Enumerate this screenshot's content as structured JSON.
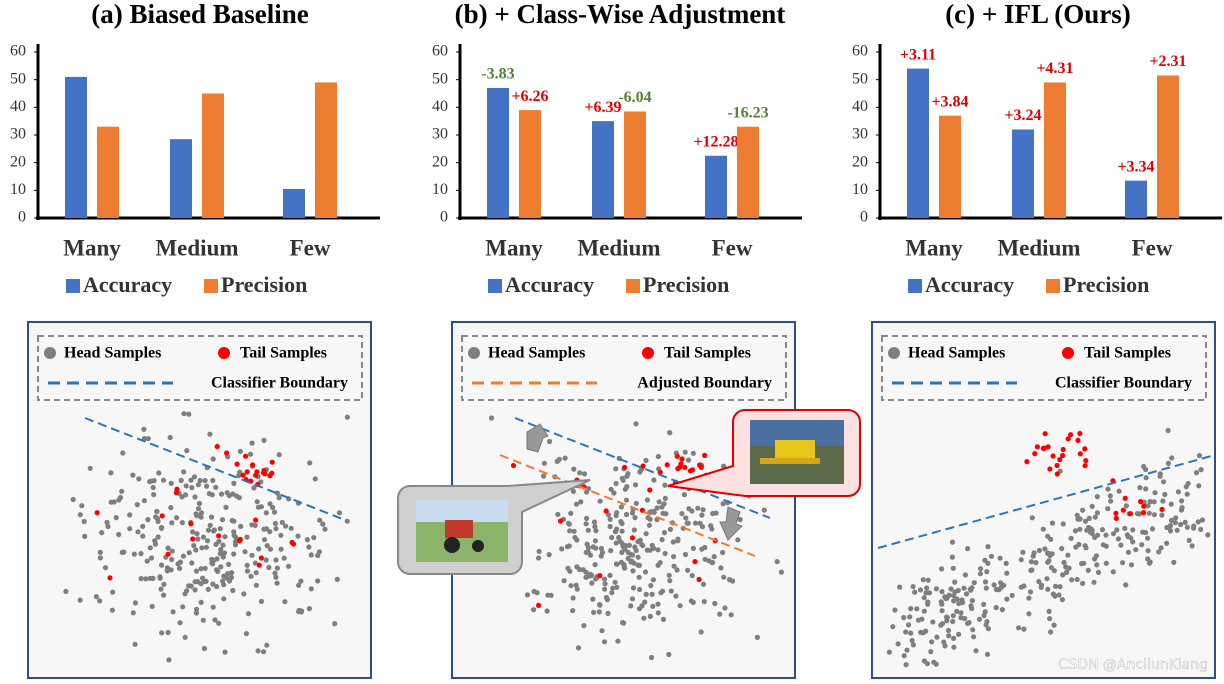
{
  "chart_data": [
    {
      "type": "bar",
      "title": "(a) Biased Baseline",
      "categories": [
        "Many",
        "Medium",
        "Few"
      ],
      "ylim": [
        0,
        60
      ],
      "yticks": [
        0,
        10,
        20,
        30,
        40,
        50,
        60
      ],
      "grid": false,
      "series": [
        {
          "name": "Accuracy",
          "color": "#4472c4",
          "values": [
            51,
            28.5,
            10.5
          ]
        },
        {
          "name": "Precision",
          "color": "#ed7d31",
          "values": [
            33,
            45,
            49
          ]
        }
      ]
    },
    {
      "type": "bar",
      "title": "(b) + Class-Wise Adjustment",
      "categories": [
        "Many",
        "Medium",
        "Few"
      ],
      "ylim": [
        0,
        60
      ],
      "yticks": [
        0,
        10,
        20,
        30,
        40,
        50,
        60
      ],
      "grid": false,
      "series": [
        {
          "name": "Accuracy",
          "color": "#4472c4",
          "values": [
            47,
            35,
            22.5
          ],
          "annotations": [
            "-3.83",
            "+6.39",
            "+12.28"
          ]
        },
        {
          "name": "Precision",
          "color": "#ed7d31",
          "values": [
            39,
            38.5,
            33
          ],
          "annotations": [
            "+6.26",
            "-6.04",
            "-16.23"
          ]
        }
      ]
    },
    {
      "type": "bar",
      "title": "(c) + IFL (Ours)",
      "categories": [
        "Many",
        "Medium",
        "Few"
      ],
      "ylim": [
        0,
        60
      ],
      "yticks": [
        0,
        10,
        20,
        30,
        40,
        50,
        60
      ],
      "grid": false,
      "series": [
        {
          "name": "Accuracy",
          "color": "#4472c4",
          "values": [
            54,
            32,
            13.5
          ],
          "annotations": [
            "+3.11",
            "+3.24",
            "+3.34"
          ]
        },
        {
          "name": "Precision",
          "color": "#ed7d31",
          "values": [
            37,
            49,
            51.5
          ],
          "annotations": [
            "+3.84",
            "+4.31",
            "+2.31"
          ]
        }
      ]
    }
  ],
  "embedding_panels": [
    {
      "head": "Head Samples",
      "tail": "Tail Samples",
      "boundary": "Classifier Boundary"
    },
    {
      "head": "Head Samples",
      "tail": "Tail Samples",
      "boundary": "Adjusted Boundary"
    },
    {
      "head": "Head Samples",
      "tail": "Tail Samples",
      "boundary": "Classifier Boundary"
    }
  ],
  "watermark": "CSDN @AncilunKiang"
}
